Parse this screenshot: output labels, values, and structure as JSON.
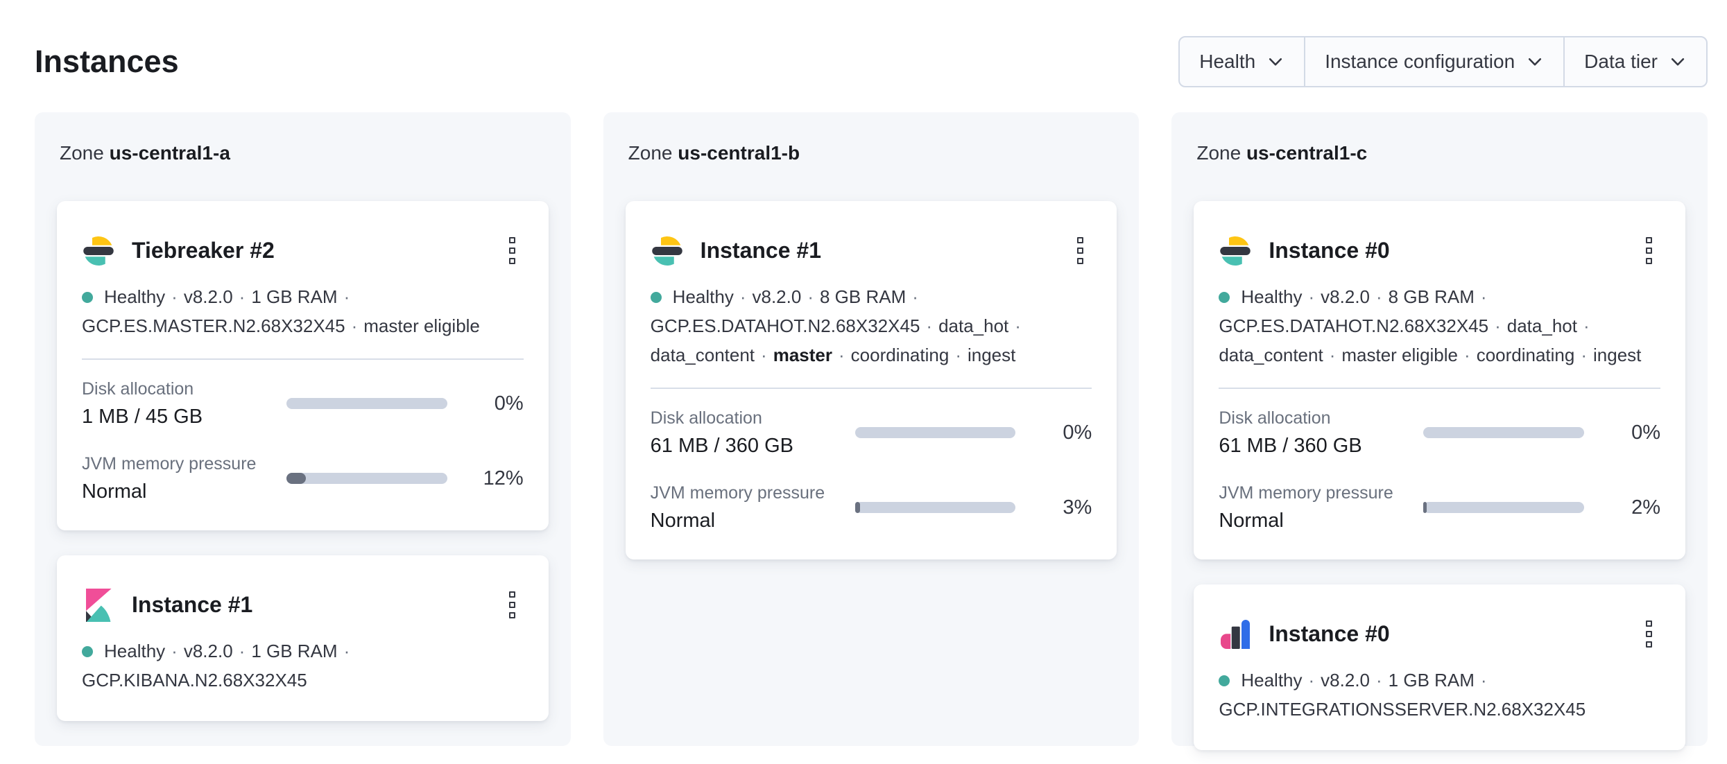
{
  "page": {
    "title": "Instances"
  },
  "filters": {
    "items": [
      {
        "label": "Health"
      },
      {
        "label": "Instance configuration"
      },
      {
        "label": "Data tier"
      }
    ]
  },
  "zone_label_prefix": "Zone",
  "status_separator": "·",
  "zones": [
    {
      "name": "us-central1-a",
      "cards": [
        {
          "icon": "elasticsearch-logo",
          "title": "Tiebreaker #2",
          "health": "Healthy",
          "status_lines": [
            [
              {
                "t": "Healthy"
              },
              {
                "t": "v8.2.0"
              },
              {
                "t": "1 GB RAM"
              }
            ],
            [
              {
                "t": "GCP.ES.MASTER.N2.68X32X45"
              },
              {
                "t": "master eligible"
              }
            ]
          ],
          "metrics": [
            {
              "label": "Disk allocation",
              "value": "1 MB / 45 GB",
              "percent": 0,
              "percent_label": "0%"
            },
            {
              "label": "JVM memory pressure",
              "value": "Normal",
              "percent": 12,
              "percent_label": "12%"
            }
          ]
        },
        {
          "icon": "kibana-logo",
          "title": "Instance #1",
          "health": "Healthy",
          "status_lines": [
            [
              {
                "t": "Healthy"
              },
              {
                "t": "v8.2.0"
              },
              {
                "t": "1 GB RAM"
              }
            ],
            [
              {
                "t": "GCP.KIBANA.N2.68X32X45"
              }
            ]
          ],
          "metrics": []
        }
      ]
    },
    {
      "name": "us-central1-b",
      "cards": [
        {
          "icon": "elasticsearch-logo",
          "title": "Instance #1",
          "health": "Healthy",
          "status_lines": [
            [
              {
                "t": "Healthy"
              },
              {
                "t": "v8.2.0"
              },
              {
                "t": "8 GB RAM"
              }
            ],
            [
              {
                "t": "GCP.ES.DATAHOT.N2.68X32X45"
              },
              {
                "t": "data_hot"
              }
            ],
            [
              {
                "t": "data_content"
              },
              {
                "t": "master",
                "bold": true
              },
              {
                "t": "coordinating"
              },
              {
                "t": "ingest"
              }
            ]
          ],
          "metrics": [
            {
              "label": "Disk allocation",
              "value": "61 MB / 360 GB",
              "percent": 0,
              "percent_label": "0%"
            },
            {
              "label": "JVM memory pressure",
              "value": "Normal",
              "percent": 3,
              "percent_label": "3%"
            }
          ]
        }
      ]
    },
    {
      "name": "us-central1-c",
      "cards": [
        {
          "icon": "elasticsearch-logo",
          "title": "Instance #0",
          "health": "Healthy",
          "status_lines": [
            [
              {
                "t": "Healthy"
              },
              {
                "t": "v8.2.0"
              },
              {
                "t": "8 GB RAM"
              }
            ],
            [
              {
                "t": "GCP.ES.DATAHOT.N2.68X32X45"
              },
              {
                "t": "data_hot"
              }
            ],
            [
              {
                "t": "data_content"
              },
              {
                "t": "master eligible"
              },
              {
                "t": "coordinating"
              },
              {
                "t": "ingest"
              }
            ]
          ],
          "metrics": [
            {
              "label": "Disk allocation",
              "value": "61 MB / 360 GB",
              "percent": 0,
              "percent_label": "0%"
            },
            {
              "label": "JVM memory pressure",
              "value": "Normal",
              "percent": 2,
              "percent_label": "2%"
            }
          ]
        },
        {
          "icon": "integrations-server-logo",
          "title": "Instance #0",
          "health": "Healthy",
          "status_lines": [
            [
              {
                "t": "Healthy"
              },
              {
                "t": "v8.2.0"
              },
              {
                "t": "1 GB RAM"
              }
            ],
            [
              {
                "t": "GCP.INTEGRATIONSSERVER.N2.68X32X45"
              }
            ]
          ],
          "metrics": []
        }
      ]
    }
  ],
  "colors": {
    "healthy_dot": "#42a99c",
    "progress_track": "#ccd3e0",
    "progress_fill": "#6a7180",
    "elastic_yellow": "#fec514",
    "elastic_dark": "#343741",
    "elastic_teal": "#49c0b2",
    "kibana_pink": "#f04e98",
    "integrations_pink": "#e8488b",
    "integrations_blue": "#2f6de8"
  }
}
